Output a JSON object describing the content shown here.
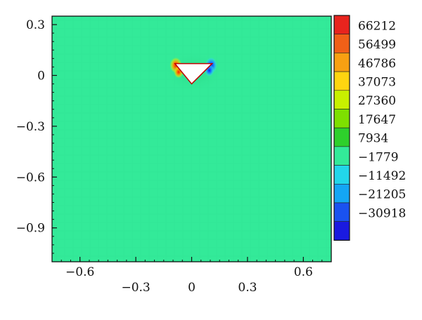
{
  "chart_data": {
    "type": "heatmap",
    "title": "",
    "xlabel": "",
    "ylabel": "",
    "xlim": [
      -0.75,
      0.75
    ],
    "ylim": [
      -1.1,
      0.35
    ],
    "x_ticks_upper": [
      {
        "value": -0.6,
        "label": "−0.6"
      },
      {
        "value": 0.6,
        "label": "0.6"
      }
    ],
    "x_ticks_lower": [
      {
        "value": -0.3,
        "label": "−0.3"
      },
      {
        "value": 0,
        "label": "0"
      },
      {
        "value": 0.3,
        "label": "0.3"
      }
    ],
    "y_ticks": [
      {
        "value": 0.3,
        "label": "0.3"
      },
      {
        "value": 0,
        "label": "0"
      },
      {
        "value": -0.3,
        "label": "−0.3"
      },
      {
        "value": -0.6,
        "label": "−0.6"
      },
      {
        "value": -0.9,
        "label": "−0.9"
      }
    ],
    "background_level": "−1779",
    "background_color": "#33ea99",
    "obstacle": {
      "shape": "triangle",
      "vertices": [
        [
          -0.09,
          0.07
        ],
        [
          0.11,
          0.07
        ],
        [
          0.0,
          -0.05
        ]
      ],
      "fill": "#ffffff",
      "stroke": "#c00000"
    },
    "hotspots": [
      {
        "x": -0.085,
        "y": 0.06,
        "level": "66212",
        "color": "#ff2a00"
      },
      {
        "x": 0.105,
        "y": 0.06,
        "level": "-30918",
        "color": "#1e2aff"
      },
      {
        "x": -0.07,
        "y": 0.02,
        "level": "56499",
        "color": "#ff7a00"
      },
      {
        "x": 0.095,
        "y": 0.03,
        "level": "-21205",
        "color": "#1a7aff"
      }
    ],
    "colorbar": {
      "levels": [
        {
          "label": "66212",
          "color": "#e8241e"
        },
        {
          "label": "56499",
          "color": "#f06018"
        },
        {
          "label": "46786",
          "color": "#f8a012"
        },
        {
          "label": "37073",
          "color": "#ffd510"
        },
        {
          "label": "27360",
          "color": "#c8f000"
        },
        {
          "label": "17647",
          "color": "#7ee000"
        },
        {
          "label": "7934",
          "color": "#2ed02c"
        },
        {
          "label": "−1779",
          "color": "#33ea99"
        },
        {
          "label": "−11492",
          "color": "#22d6ea"
        },
        {
          "label": "−21205",
          "color": "#14a6f5"
        },
        {
          "label": "−30918",
          "color": "#1a52f0"
        },
        {
          "label": "",
          "color": "#1a1ae0"
        }
      ]
    }
  }
}
